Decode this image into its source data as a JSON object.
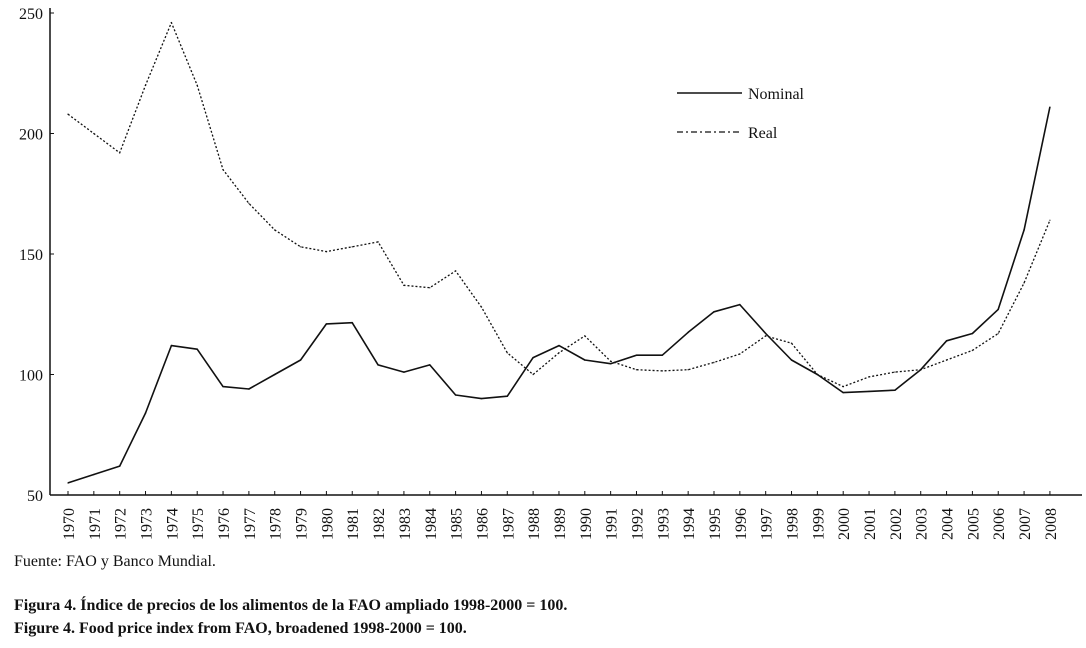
{
  "chart_data": {
    "type": "line",
    "title": "",
    "xlabel": "",
    "ylabel": "",
    "ylim": [
      50,
      250
    ],
    "yticks": [
      50,
      100,
      150,
      200,
      250
    ],
    "grid": false,
    "legend_position": "top-right",
    "categories": [
      "1970",
      "1971",
      "1972",
      "1973",
      "1974",
      "1975",
      "1976",
      "1977",
      "1978",
      "1979",
      "1980",
      "1981",
      "1982",
      "1983",
      "1984",
      "1985",
      "1986",
      "1987",
      "1988",
      "1989",
      "1990",
      "1991",
      "1992",
      "1993",
      "1994",
      "1995",
      "1996",
      "1997",
      "1998",
      "1999",
      "2000",
      "2001",
      "2002",
      "2003",
      "2004",
      "2005",
      "2006",
      "2007",
      "2008"
    ],
    "series": [
      {
        "name": "Nominal",
        "style": "solid",
        "color": "#111111",
        "values": [
          55,
          58.5,
          62,
          84,
          112,
          110.5,
          95,
          94,
          100,
          106,
          121,
          121.5,
          104,
          101,
          104,
          91.5,
          90,
          91,
          107,
          112,
          106,
          104.5,
          108,
          108,
          117.5,
          126,
          129,
          117,
          106,
          100,
          92.5,
          93,
          93.5,
          102,
          114,
          117,
          127,
          160,
          211
        ]
      },
      {
        "name": "Real",
        "style": "dotted",
        "color": "#111111",
        "values": [
          208,
          200,
          192,
          220,
          246,
          220,
          185,
          171,
          160,
          153,
          151,
          153,
          155,
          137,
          136,
          143,
          128,
          109,
          100,
          109,
          116,
          105.5,
          102,
          101.5,
          102,
          105,
          108.5,
          116,
          113,
          100,
          95,
          99,
          101,
          102,
          106,
          110,
          117,
          138,
          164
        ]
      }
    ]
  },
  "source": "Fuente: FAO y Banco Mundial.",
  "caption_es": "Figura 4. Índice de precios de los alimentos de la FAO ampliado 1998-2000 = 100.",
  "caption_en": "Figure 4. Food price index from FAO, broadened 1998-2000 = 100."
}
